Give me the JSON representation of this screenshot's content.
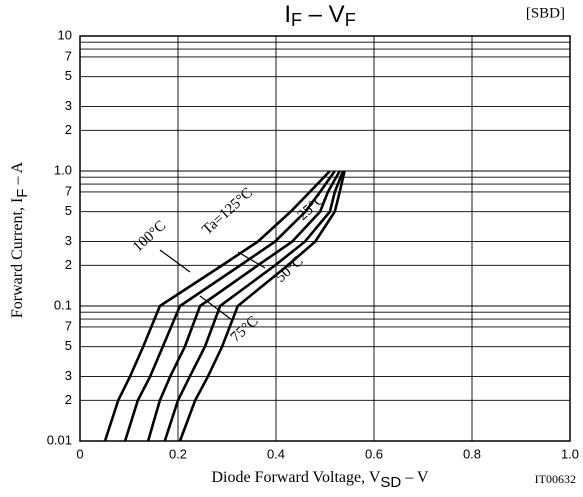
{
  "chart_data": {
    "type": "line",
    "title": [
      "I",
      "F",
      " – V",
      "F"
    ],
    "tag": "[SBD]",
    "code": "IT00632",
    "x_label": [
      "Diode Forward Voltage, V",
      "SD",
      " – V"
    ],
    "y_label": [
      "Forward Current, I",
      "F",
      " – A"
    ],
    "log_y": true,
    "grid": true,
    "color": "#000000",
    "xlim": [
      0,
      1
    ],
    "xticks": [
      0,
      0.2,
      0.4,
      0.6,
      0.8,
      {
        "value": 1,
        "label": "1.0"
      }
    ],
    "ylim": [
      0.01,
      10
    ],
    "yticks": [
      0.01,
      {
        "value": 0.02,
        "label": "2"
      },
      {
        "value": 0.03,
        "label": "3"
      },
      {
        "value": 0.05,
        "label": "5"
      },
      {
        "value": 0.07,
        "label": "7"
      },
      0.1,
      {
        "value": 0.2,
        "label": "2"
      },
      {
        "value": 0.3,
        "label": "3"
      },
      {
        "value": 0.5,
        "label": "5"
      },
      {
        "value": 0.7,
        "label": "7"
      },
      {
        "value": 1,
        "label": "1.0"
      },
      {
        "value": 2,
        "label": "2"
      },
      {
        "value": 3,
        "label": "3"
      },
      {
        "value": 5,
        "label": "5"
      },
      {
        "value": 7,
        "label": "7"
      },
      10
    ],
    "yminor_ticks": [
      0.08,
      0.09,
      0.8,
      0.9,
      8,
      9
    ],
    "series": [
      {
        "name": "Ta=125°C",
        "x": [
          0.051,
          0.078,
          0.102,
          0.129,
          0.163,
          0.29,
          0.363,
          0.43,
          0.469,
          0.51
        ],
        "values": [
          0.01,
          0.02,
          0.03,
          0.05,
          0.1,
          0.2,
          0.3,
          0.5,
          0.7,
          1.0
        ]
      },
      {
        "name": "100°C",
        "x": [
          0.092,
          0.118,
          0.143,
          0.169,
          0.204,
          0.327,
          0.398,
          0.46,
          0.49,
          0.52
        ],
        "values": [
          0.01,
          0.02,
          0.03,
          0.05,
          0.1,
          0.2,
          0.3,
          0.5,
          0.7,
          1.0
        ]
      },
      {
        "name": "75°C",
        "x": [
          0.139,
          0.163,
          0.184,
          0.214,
          0.245,
          0.363,
          0.433,
          0.49,
          0.506,
          0.53
        ],
        "values": [
          0.01,
          0.02,
          0.03,
          0.05,
          0.1,
          0.2,
          0.3,
          0.5,
          0.7,
          1.0
        ]
      },
      {
        "name": "50°C",
        "x": [
          0.173,
          0.2,
          0.224,
          0.255,
          0.286,
          0.398,
          0.459,
          0.51,
          0.52,
          0.537
        ],
        "values": [
          0.01,
          0.02,
          0.03,
          0.05,
          0.1,
          0.2,
          0.3,
          0.5,
          0.7,
          1.0
        ]
      },
      {
        "name": "25°C",
        "x": [
          0.204,
          0.235,
          0.261,
          0.29,
          0.322,
          0.424,
          0.48,
          0.52,
          0.53,
          0.54
        ],
        "values": [
          0.01,
          0.02,
          0.03,
          0.05,
          0.1,
          0.2,
          0.3,
          0.5,
          0.7,
          1.0
        ]
      }
    ]
  }
}
